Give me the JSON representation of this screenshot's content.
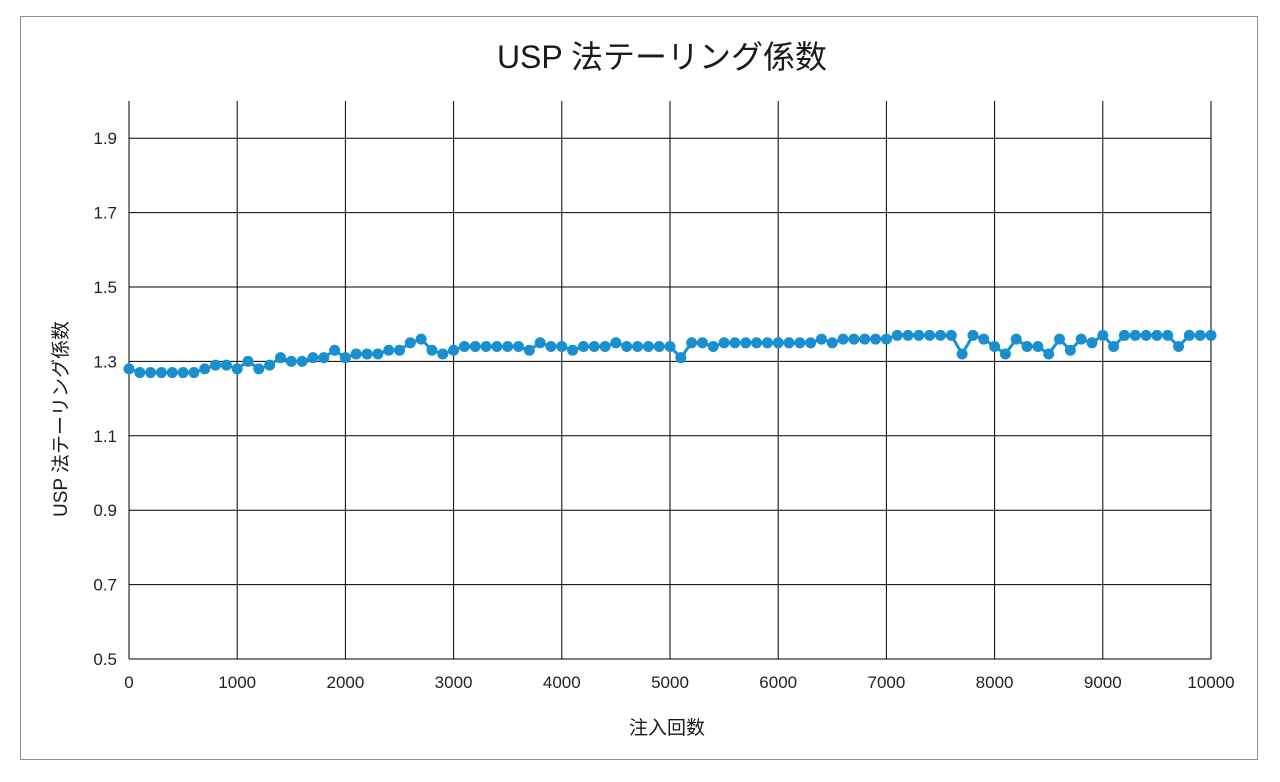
{
  "chart_data": {
    "type": "scatter",
    "title": "USP 法テーリング係数",
    "xlabel": "注入回数",
    "ylabel": "USP 法テーリング係数",
    "xlim": [
      0,
      10000
    ],
    "ylim": [
      0.5,
      2.0
    ],
    "x_ticks": [
      0,
      1000,
      2000,
      3000,
      4000,
      5000,
      6000,
      7000,
      8000,
      9000,
      10000
    ],
    "y_ticks": [
      0.5,
      0.7,
      0.9,
      1.1,
      1.3,
      1.5,
      1.7,
      1.9
    ],
    "y_tick_labels": [
      "0.5",
      "0.7",
      "0.9",
      "1.1",
      "1.3",
      "1.5",
      "1.7",
      "1.9"
    ],
    "grid": true,
    "legend": "none",
    "marker_color": "#1a8fd0",
    "line_color": "#1a8fd0",
    "series": [
      {
        "x": [
          0,
          100,
          200,
          300,
          400,
          500,
          600,
          700,
          800,
          900,
          1000,
          1100,
          1200,
          1300,
          1400,
          1500,
          1600,
          1700,
          1800,
          1900,
          2000,
          2100,
          2200,
          2300,
          2400,
          2500,
          2600,
          2700,
          2800,
          2900,
          3000,
          3100,
          3200,
          3300,
          3400,
          3500,
          3600,
          3700,
          3800,
          3900,
          4000,
          4100,
          4200,
          4300,
          4400,
          4500,
          4600,
          4700,
          4800,
          4900,
          5000,
          5100,
          5200,
          5300,
          5400,
          5500,
          5600,
          5700,
          5800,
          5900,
          6000,
          6100,
          6200,
          6300,
          6400,
          6500,
          6600,
          6700,
          6800,
          6900,
          7000,
          7100,
          7200,
          7300,
          7400,
          7500,
          7600,
          7700,
          7800,
          7900,
          8000,
          8100,
          8200,
          8300,
          8400,
          8500,
          8600,
          8700,
          8800,
          8900,
          9000,
          9100,
          9200,
          9300,
          9400,
          9500,
          9600,
          9700,
          9800,
          9900,
          10000
        ],
        "y": [
          1.28,
          1.27,
          1.27,
          1.27,
          1.27,
          1.27,
          1.27,
          1.28,
          1.29,
          1.29,
          1.28,
          1.3,
          1.28,
          1.29,
          1.31,
          1.3,
          1.3,
          1.31,
          1.31,
          1.33,
          1.31,
          1.32,
          1.32,
          1.32,
          1.33,
          1.33,
          1.35,
          1.36,
          1.33,
          1.32,
          1.33,
          1.34,
          1.34,
          1.34,
          1.34,
          1.34,
          1.34,
          1.33,
          1.35,
          1.34,
          1.34,
          1.33,
          1.34,
          1.34,
          1.34,
          1.35,
          1.34,
          1.34,
          1.34,
          1.34,
          1.34,
          1.31,
          1.35,
          1.35,
          1.34,
          1.35,
          1.35,
          1.35,
          1.35,
          1.35,
          1.35,
          1.35,
          1.35,
          1.35,
          1.36,
          1.35,
          1.36,
          1.36,
          1.36,
          1.36,
          1.36,
          1.37,
          1.37,
          1.37,
          1.37,
          1.37,
          1.37,
          1.32,
          1.37,
          1.36,
          1.34,
          1.32,
          1.36,
          1.34,
          1.34,
          1.32,
          1.36,
          1.33,
          1.36,
          1.35,
          1.37,
          1.34,
          1.37,
          1.37,
          1.37,
          1.37,
          1.37,
          1.34,
          1.37,
          1.37,
          1.37
        ]
      }
    ]
  }
}
